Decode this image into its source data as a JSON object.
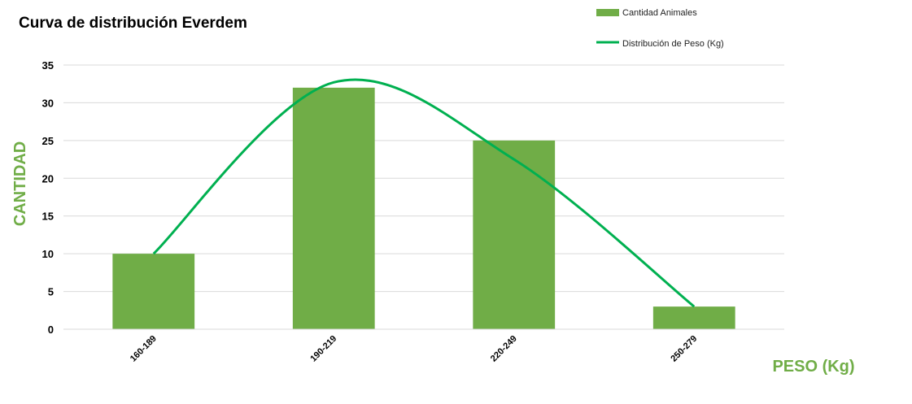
{
  "chart_data": {
    "type": "bar",
    "title": "Curva de distribución Everdem",
    "xlabel": "PESO (Kg)",
    "ylabel": "CANTIDAD",
    "ylim": [
      0,
      35
    ],
    "yticks": [
      0,
      5,
      10,
      15,
      20,
      25,
      30,
      35
    ],
    "grid": true,
    "legend_position": "top-right",
    "categories": [
      "160-189",
      "190-219",
      "220-249",
      "250-279"
    ],
    "series": [
      {
        "name": "Cantidad Animales",
        "type": "bar",
        "values": [
          10,
          32,
          25,
          3
        ],
        "color": "#70ad47"
      },
      {
        "name": "Distribución de Peso (Kg)",
        "type": "line",
        "smooth": true,
        "values": [
          10,
          32.7,
          22.5,
          3
        ],
        "color": "#00b050"
      }
    ],
    "axis_label_color": "#70ad47"
  }
}
